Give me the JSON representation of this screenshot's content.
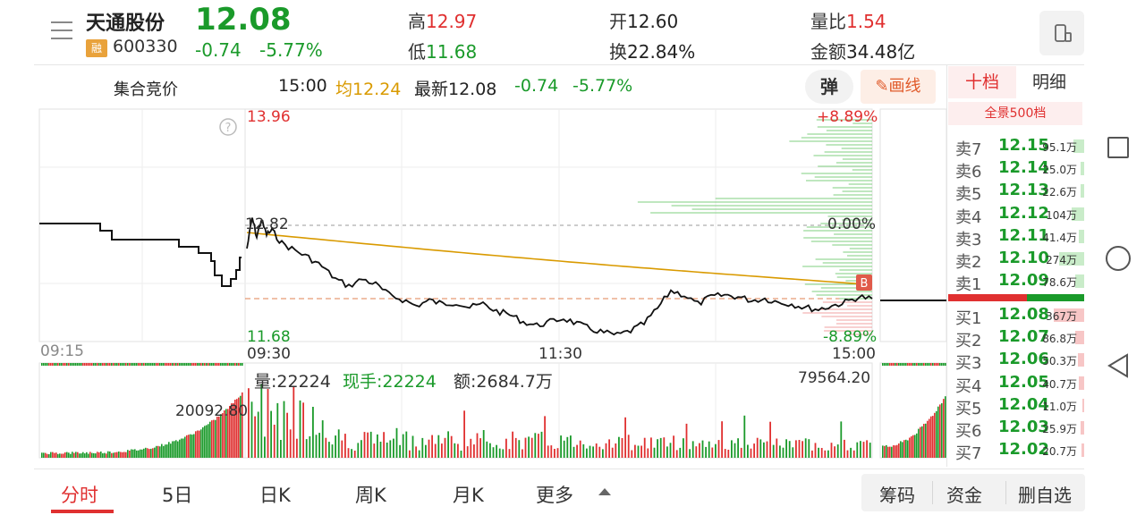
{
  "header": {
    "stock_name": "天通股份",
    "rong_badge": "融",
    "stock_code": "600330",
    "price": "12.08",
    "change": "-0.74",
    "change_pct": "-5.77%",
    "high_label": "高",
    "high_value": "12.97",
    "low_label": "低",
    "low_value": "11.68",
    "open_label": "开",
    "open_value": "12.60",
    "turnover_label": "换",
    "turnover_value": "22.84%",
    "vol_ratio_label": "量比",
    "vol_ratio_value": "1.54",
    "amount_label": "金额",
    "amount_value": "34.48亿"
  },
  "subheader": {
    "auction_label": "集合竞价",
    "time": "15:00",
    "avg": "均12.24",
    "latest": "最新12.08",
    "change": "-0.74",
    "change_pct": "-5.77%",
    "dan_button": "弹",
    "draw_button": "画线"
  },
  "chart": {
    "price_high": "13.96",
    "price_mid": "12.82",
    "price_low": "11.68",
    "pct_high": "+8.89%",
    "pct_mid": "0.00%",
    "pct_low": "-8.89%",
    "marker_b": "B",
    "help_icon": "?",
    "time_labels": [
      "09:15",
      "09:30",
      "11:30",
      "15:00"
    ],
    "volume_info": "量:22224",
    "current_hand": "现手:22224",
    "amount": "额:2684.7万",
    "vol_max": "79564.20",
    "auction_vol": "20092.80",
    "colors": {
      "up": "#e03030",
      "down": "#1a9a2a",
      "avg": "#d99a00",
      "price": "#111111"
    }
  },
  "orderbook": {
    "tab_ten": "十档",
    "tab_detail": "明细",
    "full_label": "全景500档",
    "asks": [
      {
        "label": "卖7",
        "price": "12.15",
        "vol": "95.1万",
        "w": 12
      },
      {
        "label": "卖6",
        "price": "12.14",
        "vol": "25.0万",
        "w": 4
      },
      {
        "label": "卖5",
        "price": "12.13",
        "vol": "22.6万",
        "w": 4
      },
      {
        "label": "卖4",
        "price": "12.12",
        "vol": "104万",
        "w": 14
      },
      {
        "label": "卖3",
        "price": "12.11",
        "vol": "41.4万",
        "w": 6
      },
      {
        "label": "卖2",
        "price": "12.10",
        "vol": "274万",
        "w": 28
      },
      {
        "label": "卖1",
        "price": "12.09",
        "vol": "78.6万",
        "w": 10
      }
    ],
    "bids": [
      {
        "label": "买1",
        "price": "12.08",
        "vol": "367万",
        "w": 34
      },
      {
        "label": "买2",
        "price": "12.07",
        "vol": "86.8万",
        "w": 10
      },
      {
        "label": "买3",
        "price": "12.06",
        "vol": "50.3万",
        "w": 7
      },
      {
        "label": "买4",
        "price": "12.05",
        "vol": "40.7万",
        "w": 6
      },
      {
        "label": "买5",
        "price": "12.04",
        "vol": "11.0万",
        "w": 2
      },
      {
        "label": "买6",
        "price": "12.03",
        "vol": "25.9万",
        "w": 4
      },
      {
        "label": "买7",
        "price": "12.02",
        "vol": "20.7万",
        "w": 3
      }
    ]
  },
  "bottom_nav": {
    "tabs": [
      "分时",
      "5日",
      "日K",
      "周K",
      "月K",
      "更多"
    ],
    "buttons": [
      "筹码",
      "资金",
      "删自选"
    ]
  },
  "icons": [
    "menu-icon",
    "phone-icon",
    "help-icon",
    "pencil-icon",
    "square-icon",
    "circle-icon",
    "back-icon",
    "caret-up-icon"
  ]
}
